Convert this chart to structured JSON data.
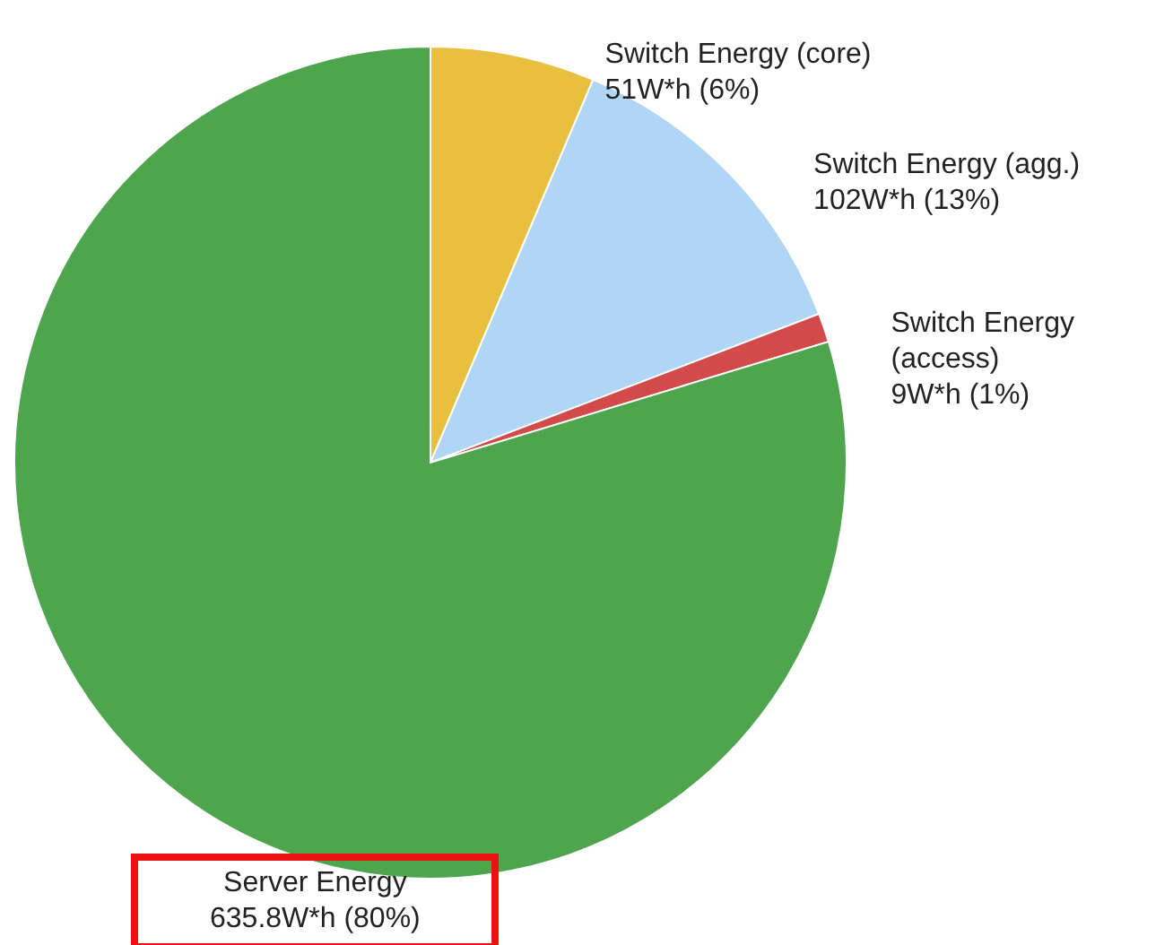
{
  "chart_data": {
    "type": "pie",
    "categories": [
      "Switch Energy (core)",
      "Switch Energy (agg.)",
      "Switch Energy (access)",
      "Server Energy"
    ],
    "values": [
      51,
      102,
      9,
      635.8
    ],
    "value_labels": [
      "51W*h (6%)",
      "102W*h (13%)",
      "9W*h (1%)",
      "635.8W*h (80%)"
    ],
    "colors": [
      "#e8bf3f",
      "#b1d6f5",
      "#d24a4a",
      "#4ea54d"
    ]
  }
}
